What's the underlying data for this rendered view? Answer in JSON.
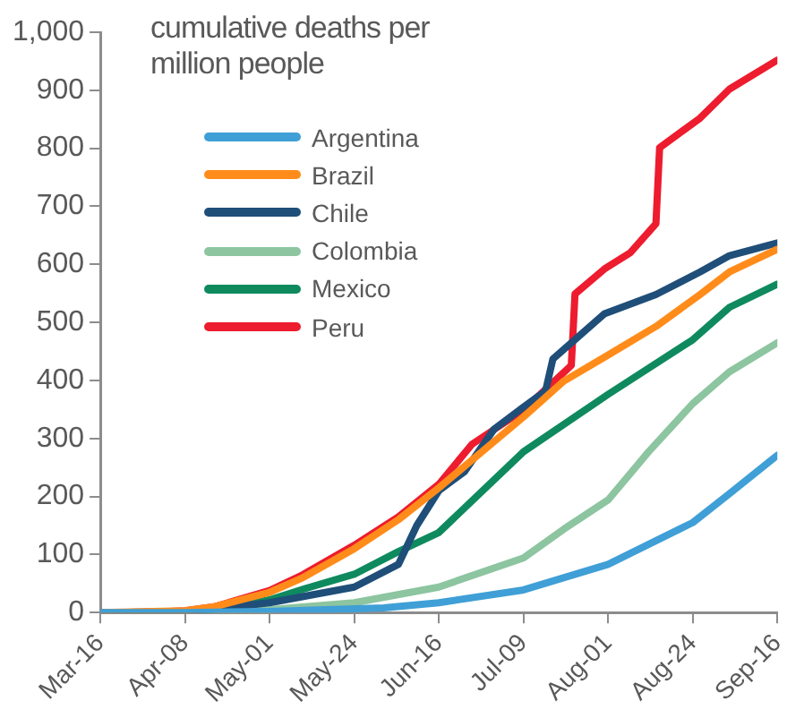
{
  "chart_data": {
    "type": "line",
    "ylabel": "cumulative deaths per million people",
    "xlim": [
      "--03-16",
      "--09-16"
    ],
    "xticks": [
      {
        "value": "--03-16",
        "label": "Mar-16"
      },
      {
        "value": "--04-08",
        "label": "Apr-08"
      },
      {
        "value": "--05-01",
        "label": "May-01"
      },
      {
        "value": "--05-24",
        "label": "May-24"
      },
      {
        "value": "--06-16",
        "label": "Jun-16"
      },
      {
        "value": "--07-09",
        "label": "Jul-09"
      },
      {
        "value": "--08-01",
        "label": "Aug-01"
      },
      {
        "value": "--08-24",
        "label": "Aug-24"
      },
      {
        "value": "--09-16",
        "label": "Sep-16"
      }
    ],
    "ylim": [
      0,
      1000
    ],
    "yticks": [
      0,
      100,
      200,
      300,
      400,
      500,
      600,
      700,
      800,
      900,
      {
        "value": 1000,
        "label": "1,000"
      }
    ],
    "grid": false,
    "legend": "top left",
    "marker": "none",
    "line_style": "solid",
    "series": [
      {
        "name": "Argentina",
        "color": "#3f9fd6",
        "x": [
          "--03-16",
          "--04-08",
          "--05-01",
          "--06-01",
          "--06-16",
          "--07-09",
          "--08-01",
          "--08-24",
          "--09-03",
          "--09-16"
        ],
        "values": [
          0,
          0,
          2,
          8,
          17,
          39,
          83,
          155,
          205,
          271
        ]
      },
      {
        "name": "Brazil",
        "color": "#ff8c1a",
        "x": [
          "--03-16",
          "--04-08",
          "--04-16",
          "--05-01",
          "--05-10",
          "--05-24",
          "--06-05",
          "--06-16",
          "--07-09",
          "--07-20",
          "--07-31",
          "--08-14",
          "--08-26",
          "--09-03",
          "--09-16"
        ],
        "values": [
          0,
          3,
          10,
          35,
          60,
          110,
          160,
          215,
          337,
          399,
          440,
          493,
          548,
          587,
          626
        ]
      },
      {
        "name": "Chile",
        "color": "#1f4e79",
        "x": [
          "--03-16",
          "--04-08",
          "--05-01",
          "--05-24",
          "--06-05",
          "--06-10",
          "--06-16",
          "--06-23",
          "--07-01",
          "--07-09",
          "--07-15",
          "--07-17",
          "--07-31",
          "--08-14",
          "--08-26",
          "--09-03",
          "--09-16"
        ],
        "values": [
          0,
          1,
          17,
          44,
          83,
          150,
          210,
          243,
          316,
          354,
          382,
          437,
          515,
          548,
          587,
          615,
          637
        ]
      },
      {
        "name": "Colombia",
        "color": "#8cc5a0",
        "x": [
          "--03-16",
          "--04-08",
          "--05-01",
          "--05-24",
          "--06-16",
          "--07-09",
          "--07-20",
          "--08-01",
          "--08-12",
          "--08-24",
          "--09-03",
          "--09-16"
        ],
        "values": [
          0,
          0,
          5,
          17,
          44,
          94,
          144,
          194,
          277,
          360,
          415,
          465
        ]
      },
      {
        "name": "Mexico",
        "color": "#0f8a5f",
        "x": [
          "--03-16",
          "--04-08",
          "--04-16",
          "--05-01",
          "--05-10",
          "--05-24",
          "--06-05",
          "--06-16",
          "--07-09",
          "--08-01",
          "--08-24",
          "--09-03",
          "--09-16"
        ],
        "values": [
          0,
          1,
          5,
          22,
          40,
          66,
          105,
          138,
          277,
          376,
          470,
          526,
          566
        ]
      },
      {
        "name": "Peru",
        "color": "#ed1c2e",
        "x": [
          "--03-20",
          "--04-01",
          "--04-08",
          "--04-16",
          "--05-01",
          "--05-10",
          "--05-24",
          "--06-05",
          "--06-16",
          "--06-25",
          "--07-09",
          "--07-22",
          "--07-23",
          "--07-31",
          "--08-07",
          "--08-14",
          "--08-15",
          "--08-26",
          "--09-03",
          "--09-16"
        ],
        "values": [
          0,
          1,
          3,
          10,
          38,
          65,
          116,
          165,
          221,
          290,
          349,
          426,
          549,
          592,
          620,
          670,
          801,
          852,
          902,
          952
        ]
      }
    ]
  }
}
